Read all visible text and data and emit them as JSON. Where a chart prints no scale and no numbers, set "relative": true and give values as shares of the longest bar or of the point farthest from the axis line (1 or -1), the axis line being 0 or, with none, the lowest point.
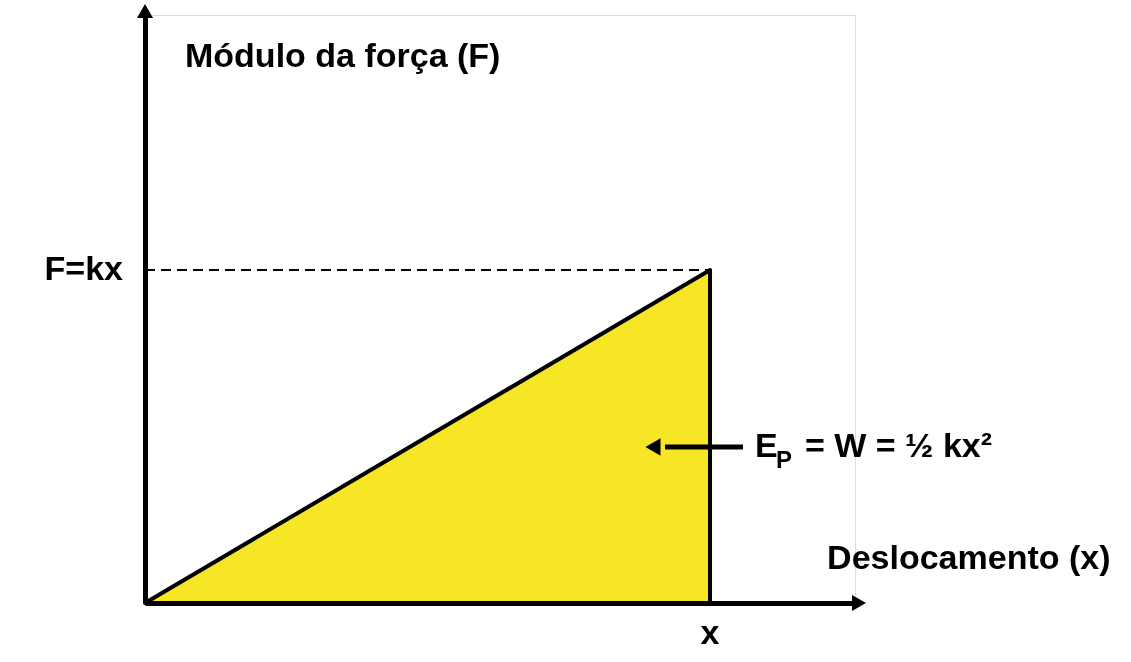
{
  "chart_data": {
    "type": "area",
    "relative": true,
    "xlabel": "Deslocamento (x)",
    "categories": [
      null,
      null
    ],
    "series": [
      {
        "color": "#f7e625",
        "values": [
          0,
          1
        ]
      }
    ],
    "ref_lines": [
      {
        "axis": "y",
        "value": 1,
        "label": "F=kx",
        "line_style": "dashed"
      }
    ],
    "annotations": [
      "Módulo da força (F)",
      "E$_{P}$ = W = ½ kx²",
      {
        "text": "x",
        "y": 0
      }
    ],
    "line_style": "solid"
  }
}
